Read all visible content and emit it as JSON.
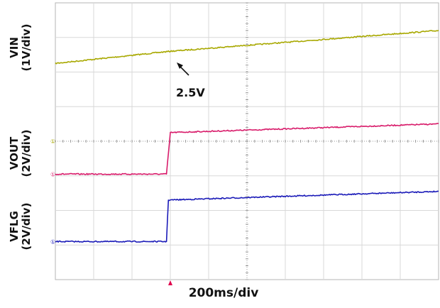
{
  "chart_data": {
    "type": "line",
    "title": "",
    "xlabel": "200ms/div",
    "x_divisions": 10,
    "y_divisions": 8,
    "grid": true,
    "trigger_marker_x_div": 3,
    "series": [
      {
        "name": "VIN",
        "scale_label": "(1V/div)",
        "color": "#a8a800",
        "channel_marker": "",
        "points_div": [
          [
            0,
            6.25
          ],
          [
            3,
            6.6
          ],
          [
            10,
            7.2
          ]
        ]
      },
      {
        "name": "VOUT",
        "scale_label": "(2V/div)",
        "color": "#d81b6a",
        "channel_marker": "①",
        "points_div": [
          [
            0,
            3.05
          ],
          [
            2.9,
            3.05
          ],
          [
            3.0,
            4.25
          ],
          [
            10,
            4.5
          ]
        ]
      },
      {
        "name": "VFLG",
        "scale_label": "(2V/div)",
        "color": "#1a1ab8",
        "channel_marker": "①",
        "points_div": [
          [
            0,
            1.1
          ],
          [
            2.9,
            1.1
          ],
          [
            2.95,
            2.3
          ],
          [
            10,
            2.55
          ]
        ]
      }
    ],
    "annotations": [
      {
        "text": "2.5V",
        "x_div": 3.05,
        "y_div": 6.6
      }
    ]
  }
}
